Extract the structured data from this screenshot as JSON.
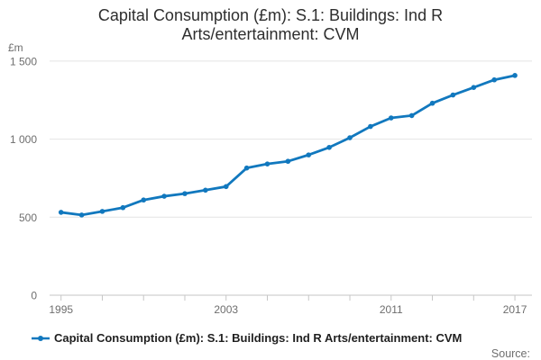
{
  "title": {
    "line1": "Capital Consumption (£m): S.1: Buildings: Ind R",
    "line2": "Arts/entertainment: CVM"
  },
  "axis": {
    "y_unit": "£m"
  },
  "legend": {
    "marker": "line-dot-marker",
    "label": "Capital Consumption (£m): S.1: Buildings: Ind R Arts/entertainment: CVM"
  },
  "footer": {
    "source_label": "Source:"
  },
  "colors": {
    "line": "#1178be",
    "grid": "#e4e4e4",
    "axis": "#c6c6c6",
    "tick_label": "#6e6e6e",
    "title_text": "#2e2e2e",
    "legend_text": "#1f1f1f",
    "source_text": "#6e6e6e"
  },
  "chart_data": {
    "type": "line",
    "title": "Capital Consumption (£m): S.1: Buildings: Ind R Arts/entertainment: CVM",
    "xlabel": "",
    "ylabel": "£m",
    "x": [
      1995,
      1996,
      1997,
      1998,
      1999,
      2000,
      2001,
      2002,
      2003,
      2004,
      2005,
      2006,
      2007,
      2008,
      2009,
      2010,
      2011,
      2012,
      2013,
      2014,
      2015,
      2016,
      2017
    ],
    "values": [
      531,
      514,
      537,
      561,
      610,
      634,
      651,
      673,
      696,
      815,
      841,
      858,
      899,
      947,
      1009,
      1081,
      1136,
      1151,
      1230,
      1283,
      1331,
      1380,
      1408
    ],
    "series_name": "Capital Consumption (£m): S.1: Buildings: Ind R Arts/entertainment: CVM",
    "ylim": [
      0,
      1500
    ],
    "xlim": [
      1995,
      2017
    ],
    "y_ticks": [
      {
        "value": 0,
        "label": "0"
      },
      {
        "value": 500,
        "label": "500"
      },
      {
        "value": 1000,
        "label": "1 000"
      },
      {
        "value": 1500,
        "label": "1 500"
      }
    ],
    "x_tick_years": [
      1995,
      1997,
      1999,
      2001,
      2003,
      2005,
      2007,
      2009,
      2011,
      2013,
      2015,
      2017
    ],
    "x_labeled_years": [
      1995,
      2003,
      2011,
      2017
    ],
    "grid": "horizontal-only",
    "legend_position": "bottom-left",
    "marker": "dot"
  }
}
